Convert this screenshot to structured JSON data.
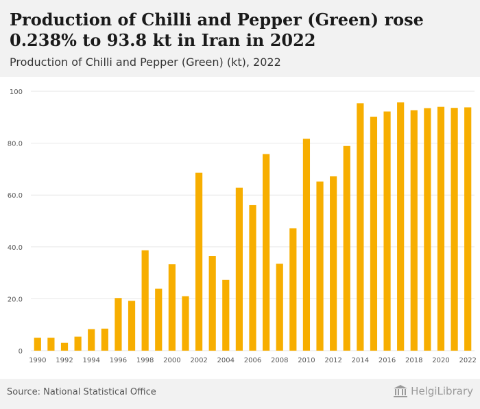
{
  "header": {
    "title": "Production of Chilli and Pepper (Green) rose 0.238% to 93.8 kt in Iran in 2022",
    "subtitle": "Production of Chilli and Pepper (Green) (kt), 2022"
  },
  "footer": {
    "source": "Source: National Statistical Office",
    "logo_text": "HelgiLibrary"
  },
  "colors": {
    "bar": "#f7ae00",
    "grid": "#e6e6e6",
    "tick_text": "#555555",
    "header_bg": "#f2f2f2"
  },
  "chart_data": {
    "type": "bar",
    "categories": [
      "1990",
      "1991",
      "1992",
      "1993",
      "1994",
      "1995",
      "1996",
      "1997",
      "1998",
      "1999",
      "2000",
      "2001",
      "2002",
      "2003",
      "2004",
      "2005",
      "2006",
      "2007",
      "2008",
      "2009",
      "2010",
      "2011",
      "2012",
      "2013",
      "2014",
      "2015",
      "2016",
      "2017",
      "2018",
      "2019",
      "2020",
      "2021",
      "2022"
    ],
    "x_tick_labels": [
      "1990",
      "1992",
      "1994",
      "1996",
      "1998",
      "2000",
      "2002",
      "2004",
      "2006",
      "2008",
      "2010",
      "2012",
      "2014",
      "2016",
      "2018",
      "2020",
      "2022"
    ],
    "values": [
      5.0,
      5.0,
      3.0,
      5.4,
      8.3,
      8.5,
      20.3,
      19.2,
      38.7,
      23.9,
      33.3,
      21.0,
      68.6,
      36.5,
      27.3,
      62.8,
      56.1,
      75.8,
      33.5,
      47.2,
      81.7,
      65.2,
      67.2,
      78.9,
      95.4,
      90.2,
      92.2,
      95.7,
      92.7,
      93.5,
      94.0,
      93.6,
      93.8
    ],
    "y_ticks": [
      "0",
      "20.0",
      "40.0",
      "60.0",
      "80.0",
      "100"
    ],
    "ylim": [
      0,
      100
    ],
    "grid": true
  }
}
